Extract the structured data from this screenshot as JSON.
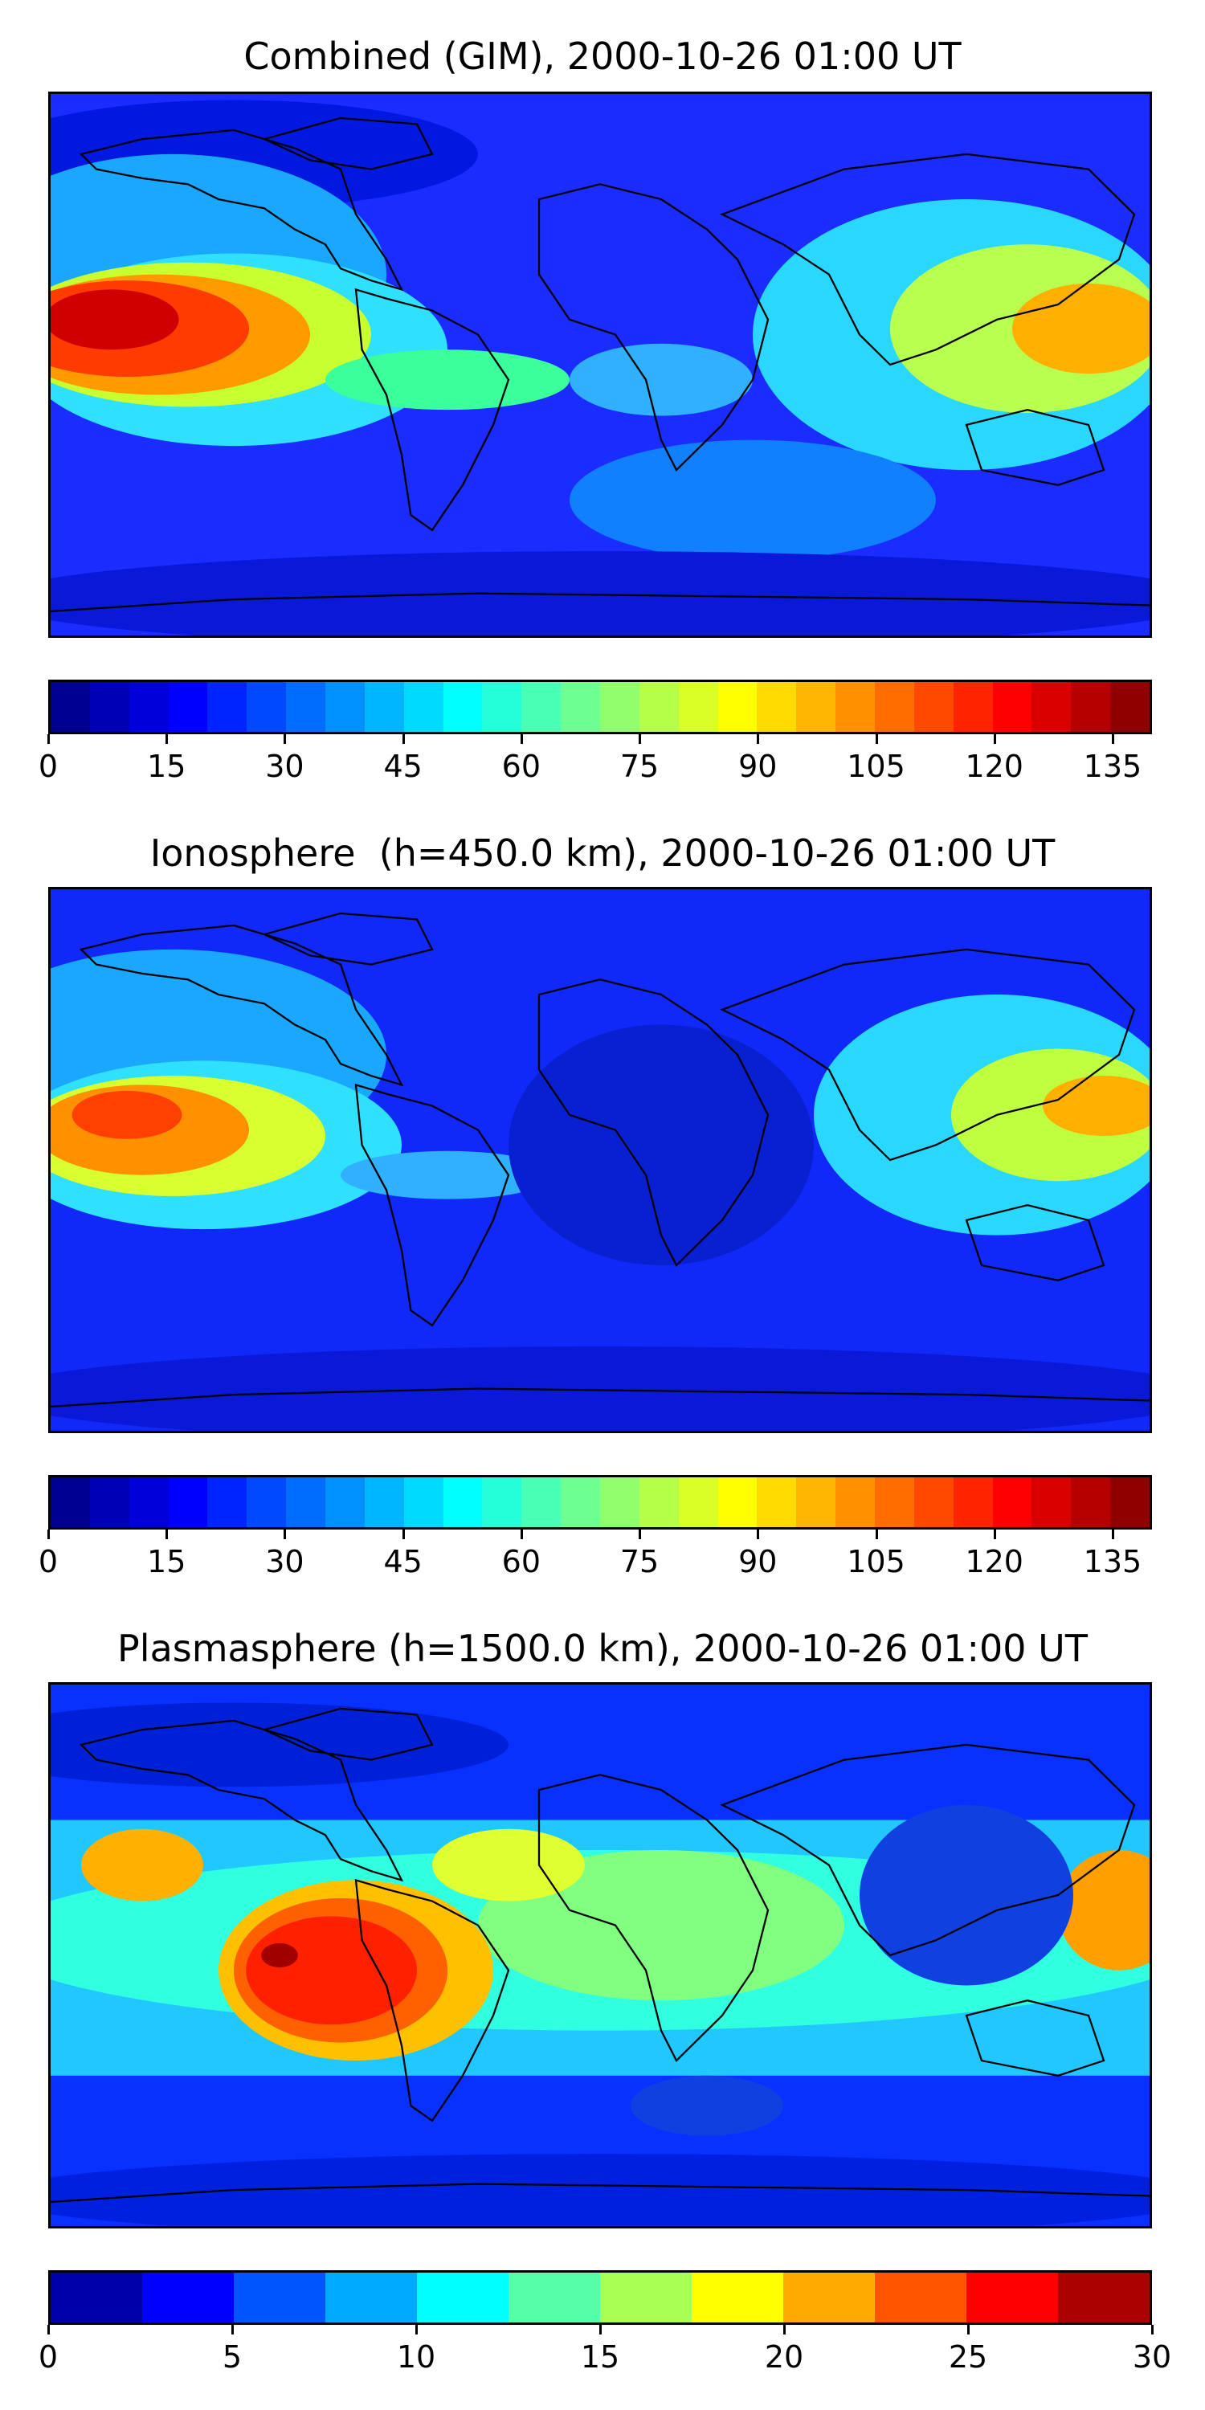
{
  "panels": [
    {
      "title": "Combined (GIM), 2000-10-26 01:00 UT",
      "colorbar": {
        "ticks": [
          "0",
          "15",
          "30",
          "45",
          "60",
          "75",
          "90",
          "105",
          "120",
          "135"
        ],
        "tick_values": [
          0,
          15,
          30,
          45,
          60,
          75,
          90,
          105,
          120,
          135
        ],
        "min": 0,
        "max": 140,
        "levels": 28
      }
    },
    {
      "title": "Ionosphere  (h=450.0 km), 2000-10-26 01:00 UT",
      "colorbar": {
        "ticks": [
          "0",
          "15",
          "30",
          "45",
          "60",
          "75",
          "90",
          "105",
          "120",
          "135"
        ],
        "tick_values": [
          0,
          15,
          30,
          45,
          60,
          75,
          90,
          105,
          120,
          135
        ],
        "min": 0,
        "max": 140,
        "levels": 28
      }
    },
    {
      "title": "Plasmasphere (h=1500.0 km), 2000-10-26 01:00 UT",
      "colorbar": {
        "ticks": [
          "0",
          "5",
          "10",
          "15",
          "20",
          "25",
          "30"
        ],
        "tick_values": [
          0,
          5,
          10,
          15,
          20,
          25,
          30
        ],
        "min": 0,
        "max": 30,
        "levels": 12
      }
    }
  ],
  "colormap": "jet",
  "colormap_stops": [
    "#00007f",
    "#0000ff",
    "#007fff",
    "#00ffff",
    "#7fff7f",
    "#ffff00",
    "#ff7f00",
    "#ff0000",
    "#7f0000"
  ],
  "coastline_color": "#000000"
}
